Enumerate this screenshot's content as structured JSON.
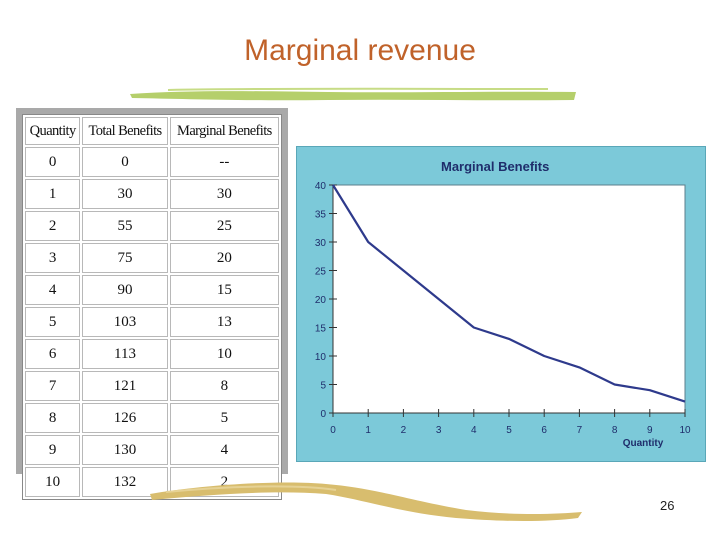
{
  "slide": {
    "title": "Marginal revenue",
    "page_number": "26"
  },
  "table": {
    "headers": [
      "Quantity",
      "Total Benefits",
      "Marginal Benefits"
    ],
    "rows": [
      [
        "0",
        "0",
        "--"
      ],
      [
        "1",
        "30",
        "30"
      ],
      [
        "2",
        "55",
        "25"
      ],
      [
        "3",
        "75",
        "20"
      ],
      [
        "4",
        "90",
        "15"
      ],
      [
        "5",
        "103",
        "13"
      ],
      [
        "6",
        "113",
        "10"
      ],
      [
        "7",
        "121",
        "8"
      ],
      [
        "8",
        "126",
        "5"
      ],
      [
        "9",
        "130",
        "4"
      ],
      [
        "10",
        "132",
        "2"
      ]
    ]
  },
  "chart_data": {
    "type": "line",
    "title": "Marginal Benefits",
    "xlabel": "Quantity",
    "ylabel": "",
    "x": [
      0,
      1,
      2,
      3,
      4,
      5,
      6,
      7,
      8,
      9,
      10
    ],
    "series": [
      {
        "values": [
          40,
          30,
          25,
          20,
          15,
          13,
          10,
          8,
          5,
          4,
          2
        ]
      }
    ],
    "xlim": [
      0,
      10
    ],
    "ylim": [
      0,
      40
    ],
    "xticks": [
      "0",
      "1",
      "2",
      "3",
      "4",
      "5",
      "6",
      "7",
      "8",
      "9",
      "10"
    ],
    "yticks": [
      "0",
      "5",
      "10",
      "15",
      "20",
      "25",
      "30",
      "35",
      "40"
    ],
    "grid": false,
    "colors": {
      "line": "#2e3a8c",
      "plot_background": "#ffffff",
      "panel_background": "#7cc9d9",
      "title": "#1f2d6b",
      "tick_labels": "#1f2d6b"
    }
  },
  "colors": {
    "title": "#c0622a",
    "top_brush": "#b5cf6b",
    "bottom_brush": "#d8bd6e"
  }
}
